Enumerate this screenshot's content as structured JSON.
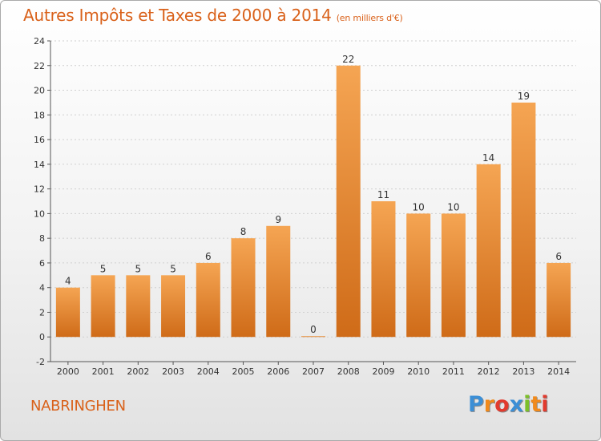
{
  "title": "Autres Impôts et Taxes de 2000 à 2014",
  "subtitle": "(en milliers d'€)",
  "location": "NABRINGHEN",
  "logo": {
    "text": "Proxiti",
    "colors": [
      "#3c8fd6",
      "#f08a1c",
      "#e23b2e",
      "#3c8fd6",
      "#7cbf2a",
      "#f08a1c",
      "#e23b2e"
    ]
  },
  "colors": {
    "bar_top": "#f5a553",
    "bar_bottom": "#cf6b18",
    "axis": "#555555",
    "grid": "#cfcfcf",
    "title": "#d9611a"
  },
  "chart_data": {
    "type": "bar",
    "categories": [
      "2000",
      "2001",
      "2002",
      "2003",
      "2004",
      "2005",
      "2006",
      "2007",
      "2008",
      "2009",
      "2010",
      "2011",
      "2012",
      "2013",
      "2014"
    ],
    "values": [
      4,
      5,
      5,
      5,
      6,
      8,
      9,
      0,
      22,
      11,
      10,
      10,
      14,
      19,
      6
    ],
    "data_labels": [
      "4",
      "5",
      "5",
      "5",
      "6",
      "8",
      "9",
      "0",
      "22",
      "11",
      "10",
      "10",
      "14",
      "19",
      "6"
    ],
    "yticks": [
      "-2",
      "0",
      "2",
      "4",
      "6",
      "8",
      "10",
      "12",
      "14",
      "16",
      "18",
      "20",
      "22",
      "24"
    ],
    "ylim": [
      -2,
      24
    ],
    "grid": true
  }
}
